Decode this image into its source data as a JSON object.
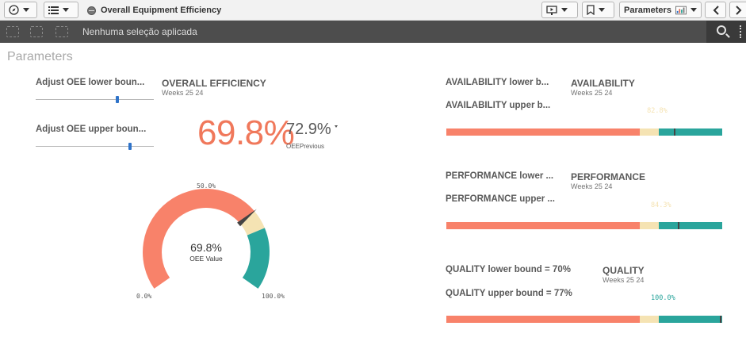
{
  "toolbar": {
    "app_title": "Overall Equipment Efficiency",
    "parameters_label": "Parameters"
  },
  "selections": {
    "text": "Nenhuma seleção aplicada"
  },
  "sheet": {
    "title": "Parameters"
  },
  "sliders": [
    {
      "label": "Adjust OEE lower boun...",
      "value": 0.7
    },
    {
      "label": "Adjust OEE upper boun...",
      "value": 0.77
    }
  ],
  "overall": {
    "title": "OVERALL EFFICIENCY",
    "subtitle": "Weeks 25 24",
    "value": "69.8%",
    "previous_value": "72.9%",
    "previous_label": "OEEPrevious"
  },
  "gauge": {
    "value": "69.8%",
    "label": "OEE Value",
    "min_label": "0.0%",
    "mid_label": "50.0%",
    "max_label": "100.0%",
    "current": 69.8,
    "lower_bound": 70,
    "upper_bound": 77,
    "colors": {
      "low": "#f8826a",
      "mid": "#f5e3b3",
      "high": "#2aa59c",
      "needle": "#444444"
    }
  },
  "availability": {
    "lower_label": "AVAILABILITY lower b...",
    "upper_label": "AVAILABILITY upper b...",
    "title": "AVAILABILITY",
    "subtitle": "Weeks 25 24",
    "value_label": "82.8%",
    "value": 82.8,
    "value_color": "#f5e3b3"
  },
  "performance": {
    "lower_label": "PERFORMANCE lower ...",
    "upper_label": "PERFORMANCE upper ...",
    "title": "PERFORMANCE",
    "subtitle": "Weeks 25 24",
    "value_label": "84.3%",
    "value": 84.3,
    "value_color": "#f5e3b3"
  },
  "quality": {
    "lower_label": "QUALITY lower bound = 70%",
    "upper_label": "QUALITY upper bound = 77%",
    "title": "QUALITY",
    "subtitle": "Weeks 25 24",
    "value_label": "100.0%",
    "value": 100.0,
    "value_color": "#2aa59c"
  },
  "bar_colors": {
    "low": "#f8826a",
    "mid": "#f5e3b3",
    "high": "#2aa59c"
  }
}
